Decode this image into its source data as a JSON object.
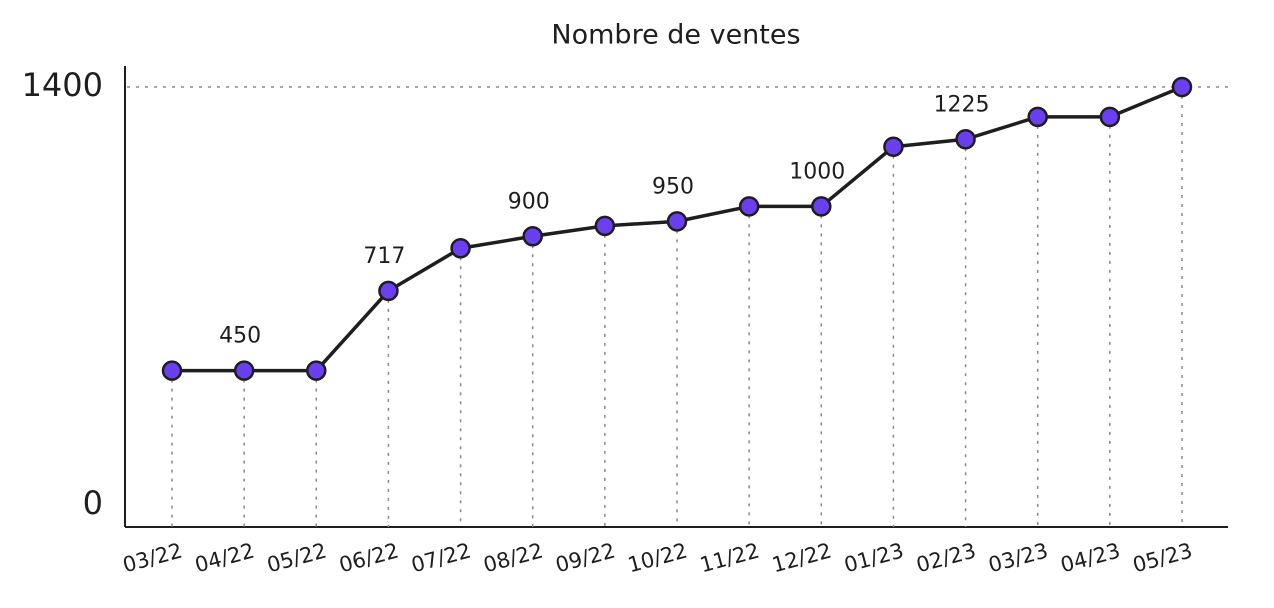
{
  "chart_data": {
    "type": "line",
    "title": "Nombre de ventes",
    "categories": [
      "03/22",
      "04/22",
      "05/22",
      "06/22",
      "07/22",
      "08/22",
      "09/22",
      "10/22",
      "11/22",
      "12/22",
      "01/23",
      "02/23",
      "03/23",
      "04/23",
      "05/23"
    ],
    "series": [
      {
        "color": "#6a3ff0",
        "values": [
          450,
          450,
          450,
          717,
          860,
          900,
          935,
          950,
          1000,
          1000,
          1200,
          1225,
          1300,
          1300,
          1400
        ],
        "value_labels": [
          null,
          "450",
          null,
          "717",
          null,
          "900",
          null,
          "950",
          null,
          "1000",
          null,
          "1225",
          null,
          null,
          null
        ]
      }
    ],
    "ylim": [
      0,
      1400
    ],
    "yticks": [
      0,
      1400
    ],
    "grid": true
  }
}
